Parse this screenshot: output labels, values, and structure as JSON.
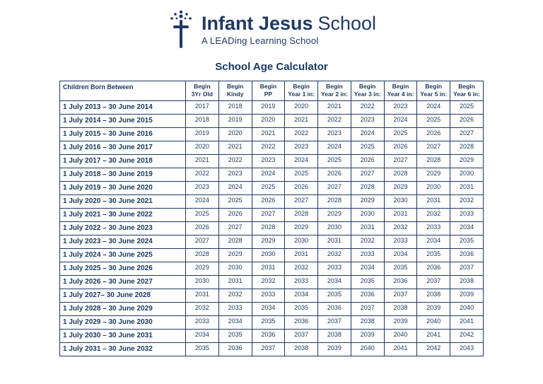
{
  "colors": {
    "navy": "#1F3864"
  },
  "logo": {
    "brand_bold": "Infant Jesus",
    "brand_light": "School",
    "tagline": "A LEADing Learning School"
  },
  "title": "School Age Calculator",
  "table": {
    "label_header": "Children Born Between",
    "year_headers": [
      {
        "id": "begin-3yr-old",
        "line1": "Begin",
        "line2": "3Yr Old"
      },
      {
        "id": "begin-kindy",
        "line1": "Begin",
        "line2": "Kindy"
      },
      {
        "id": "begin-pp",
        "line1": "Begin",
        "line2": "PP"
      },
      {
        "id": "begin-year-1",
        "line1": "Begin",
        "line2": "Year 1 in:"
      },
      {
        "id": "begin-year-2",
        "line1": "Begin",
        "line2": "Year 2 in:"
      },
      {
        "id": "begin-year-3",
        "line1": "Begin",
        "line2": "Year 3 in:"
      },
      {
        "id": "begin-year-4",
        "line1": "Begin",
        "line2": "Year 4 in:"
      },
      {
        "id": "begin-year-5",
        "line1": "Begin",
        "line2": "Year 5 in:"
      },
      {
        "id": "begin-year-6",
        "line1": "Begin",
        "line2": "Year 6 in:"
      }
    ],
    "rows": [
      {
        "born": "1 July 2013 – 30 June 2014",
        "years": [
          "2017",
          "2018",
          "2019",
          "2020",
          "2021",
          "2022",
          "2023",
          "2024",
          "2025"
        ]
      },
      {
        "born": "1 July 2014 – 30 June 2015",
        "years": [
          "2018",
          "2019",
          "2020",
          "2021",
          "2022",
          "2023",
          "2024",
          "2025",
          "2026"
        ]
      },
      {
        "born": "1 July 2015 – 30 June 2016",
        "years": [
          "2019",
          "2020",
          "2021",
          "2022",
          "2023",
          "2024",
          "2025",
          "2026",
          "2027"
        ]
      },
      {
        "born": "1 July 2016 – 30 June 2017",
        "years": [
          "2020",
          "2021",
          "2022",
          "2023",
          "2024",
          "2025",
          "2026",
          "2027",
          "2028"
        ]
      },
      {
        "born": "1 July 2017 – 30 June 2018",
        "years": [
          "2021",
          "2022",
          "2023",
          "2024",
          "2025",
          "2026",
          "2027",
          "2028",
          "2029"
        ]
      },
      {
        "born": "1 July 2018 – 30 June 2019",
        "years": [
          "2022",
          "2023",
          "2024",
          "2025",
          "2026",
          "2027",
          "2028",
          "2029",
          "2030"
        ]
      },
      {
        "born": "1 July 2019 – 30 June 2020",
        "years": [
          "2023",
          "2024",
          "2025",
          "2026",
          "2027",
          "2028",
          "2029",
          "2030",
          "2031"
        ]
      },
      {
        "born": "1 July 2020 – 30 June 2021",
        "years": [
          "2024",
          "2025",
          "2026",
          "2027",
          "2028",
          "2029",
          "2030",
          "2031",
          "2032"
        ]
      },
      {
        "born": "1 July 2021 – 30 June 2022",
        "years": [
          "2025",
          "2026",
          "2027",
          "2028",
          "2029",
          "2030",
          "2031",
          "2032",
          "2033"
        ]
      },
      {
        "born": "1 July 2022 – 30 June 2023",
        "years": [
          "2026",
          "2027",
          "2028",
          "2029",
          "2030",
          "2031",
          "2032",
          "2033",
          "2034"
        ]
      },
      {
        "born": "1 July 2023 – 30 June 2024",
        "years": [
          "2027",
          "2028",
          "2029",
          "2030",
          "2031",
          "2032",
          "2033",
          "2034",
          "2035"
        ]
      },
      {
        "born": "1 July 2024 – 30 June 2025",
        "years": [
          "2028",
          "2029",
          "2030",
          "2031",
          "2032",
          "2033",
          "2034",
          "2035",
          "2036"
        ]
      },
      {
        "born": "1 July 2025 – 30 June 2026",
        "years": [
          "2029",
          "2030",
          "2031",
          "2032",
          "2033",
          "2034",
          "2035",
          "2036",
          "2037"
        ]
      },
      {
        "born": "1 July 2026 – 30 June 2027",
        "years": [
          "2030",
          "2031",
          "2032",
          "2033",
          "2034",
          "2035",
          "2036",
          "2037",
          "2038"
        ]
      },
      {
        "born": "1 July 2027– 30 June 2028",
        "years": [
          "2031",
          "2032",
          "2033",
          "2034",
          "2035",
          "2036",
          "2037",
          "2038",
          "2039"
        ]
      },
      {
        "born": "1 July 2028 – 30 June 2029",
        "years": [
          "2032",
          "2033",
          "2034",
          "2035",
          "2036",
          "2037",
          "2038",
          "2039",
          "2040"
        ]
      },
      {
        "born": "1 July 2029 – 30 June 2030",
        "years": [
          "2033",
          "2034",
          "2035",
          "2036",
          "2037",
          "2038",
          "2039",
          "2040",
          "2041"
        ]
      },
      {
        "born": "1 July 2030 – 30 June 2031",
        "years": [
          "2034",
          "2035",
          "2036",
          "2037",
          "2038",
          "2039",
          "2040",
          "2041",
          "2042"
        ]
      },
      {
        "born": "1 July 2031 – 30 June 2032",
        "years": [
          "2035",
          "2036",
          "2037",
          "2038",
          "2039",
          "2040",
          "2041",
          "2042",
          "2043"
        ]
      }
    ]
  }
}
